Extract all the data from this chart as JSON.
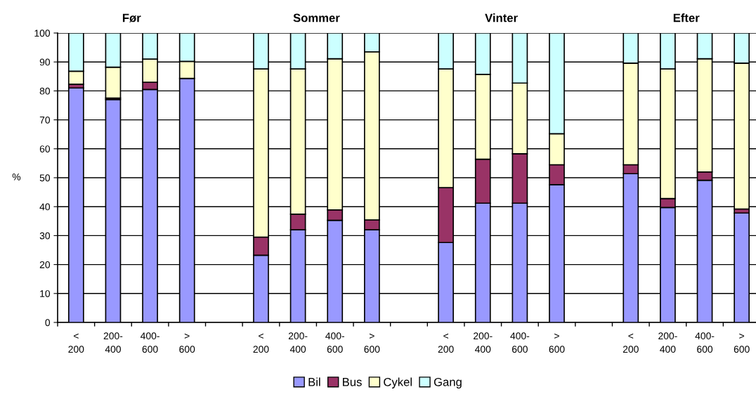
{
  "chart_data": {
    "type": "bar",
    "stacked": true,
    "ylabel": "%",
    "annotations": [
      "Før",
      "Sommer",
      "Vinter",
      "Efter"
    ],
    "categories": [
      "<\n200",
      "200-\n400",
      "400-\n600",
      ">\n600",
      null,
      "<\n200",
      "200-\n400",
      "400-\n600",
      ">\n600",
      null,
      "<\n200",
      "200-\n400",
      "400-\n600",
      ">\n600",
      null,
      "<\n200",
      "200-\n400",
      "400-\n600",
      ">\n600"
    ],
    "series": [
      {
        "name": "Bil",
        "color": "#9999ff",
        "values": [
          81,
          77,
          80.5,
          84.3,
          null,
          23.2,
          32,
          35.3,
          32,
          null,
          27.6,
          41.2,
          41.2,
          47.6,
          null,
          51.4,
          39.7,
          49.1,
          37.8
        ]
      },
      {
        "name": "Bus",
        "color": "#993366",
        "values": [
          1.3,
          0.5,
          2.5,
          0,
          null,
          6.3,
          5.4,
          3.6,
          3.4,
          null,
          19,
          15.2,
          17.1,
          6.9,
          null,
          3.1,
          3.1,
          2.9,
          1.4
        ]
      },
      {
        "name": "Cykel",
        "color": "#ffffcc",
        "values": [
          4.5,
          10.7,
          8,
          5.9,
          null,
          58.1,
          50.2,
          52.2,
          58.1,
          null,
          41,
          29.3,
          24.4,
          10.7,
          null,
          35.1,
          44.8,
          39.1,
          50.4
        ]
      },
      {
        "name": "Gang",
        "color": "#ccffff",
        "values": [
          13.2,
          11.8,
          9,
          9.8,
          null,
          12.4,
          12.4,
          8.9,
          6.5,
          null,
          12.4,
          14.3,
          17.3,
          34.8,
          null,
          10.4,
          12.4,
          8.9,
          10.4
        ]
      }
    ],
    "ylim": [
      0,
      100
    ],
    "yticks": [
      0,
      10,
      20,
      30,
      40,
      50,
      60,
      70,
      80,
      90,
      100
    ],
    "grid": "y",
    "legend": "bottom"
  }
}
